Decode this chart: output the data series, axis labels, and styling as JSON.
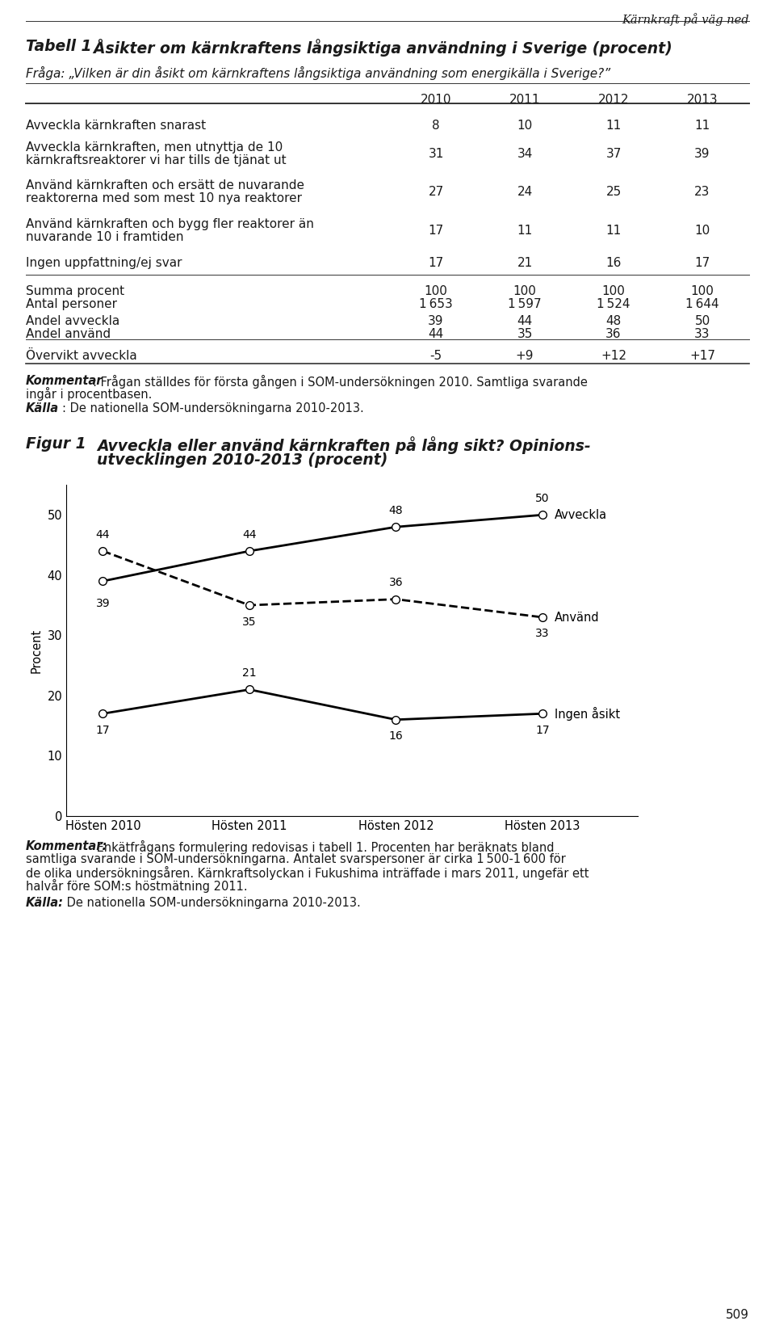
{
  "page_header": "Kärnkraft på väg ned",
  "table_title_bold": "Tabell 1",
  "table_title_rest": "  Åsikter om kärnkraftens långsiktiga användning i Sverige (procent)",
  "table_question": "Fråga: „Vilken är din åsikt om kärnkraftens långsiktiga användning som energikälla i Sverige?”",
  "years": [
    "2010",
    "2011",
    "2012",
    "2013"
  ],
  "row1_label": "Avveckla kärnkraften snarast",
  "row1_vals": [
    "8",
    "10",
    "11",
    "11"
  ],
  "row2_label1": "Avveckla kärnkraften, men utnyttja de 10",
  "row2_label2": "kärnkraftsreaktorer vi har tills de tjänat ut",
  "row2_vals": [
    "31",
    "34",
    "37",
    "39"
  ],
  "row3_label1": "Använd kärnkraften och ersätt de nuvarande",
  "row3_label2": "reaktorerna med som mest 10 nya reaktorer",
  "row3_vals": [
    "27",
    "24",
    "25",
    "23"
  ],
  "row4_label1": "Använd kärnkraften och bygg fler reaktorer än",
  "row4_label2": "nuvarande 10 i framtiden",
  "row4_vals": [
    "17",
    "11",
    "11",
    "10"
  ],
  "row5_label": "Ingen uppfattning/ej svar",
  "row5_vals": [
    "17",
    "21",
    "16",
    "17"
  ],
  "summa_vals": [
    "100",
    "100",
    "100",
    "100"
  ],
  "antal_vals": [
    "1 653",
    "1 597",
    "1 524",
    "1 644"
  ],
  "andel_avv_vals": [
    "39",
    "44",
    "48",
    "50"
  ],
  "andel_anv_vals": [
    "44",
    "35",
    "36",
    "33"
  ],
  "overvikt_vals": [
    "-5",
    "+9",
    "+12",
    "+17"
  ],
  "table_comment1": "Kommentar",
  "table_comment2": ": Frågan ställdes för första gången i SOM-undersökningen 2010. Samtliga svarande",
  "table_comment3": "ingår i procentbasen.",
  "table_source1": "Källa",
  "table_source2": ": De nationella SOM-undersökningarna 2010-2013.",
  "fig_label": "Figur 1",
  "fig_title1": "Avveckla eller använd kärnkraften på lång sikt? Opinions-",
  "fig_title2": "utvecklingen 2010-2013 (procent)",
  "chart_ylabel": "Procent",
  "chart_x_labels": [
    "Hösten 2010",
    "Hösten 2011",
    "Hösten 2012",
    "Hösten 2013"
  ],
  "avveckla_values": [
    39,
    44,
    48,
    50
  ],
  "anvand_values": [
    44,
    35,
    36,
    33
  ],
  "ingen_values": [
    17,
    21,
    16,
    17
  ],
  "avveckla_label": "Avveckla",
  "anvand_label": "Använd",
  "ingen_label": "Ingen åsikt",
  "chart_ylim": [
    0,
    55
  ],
  "chart_yticks": [
    0,
    10,
    20,
    30,
    40,
    50
  ],
  "fig_comment1": "Kommentar:",
  "fig_comment2": " Enkätfrågans formulering redovisas i tabell 1. Procenten har beräknats bland",
  "fig_comment3": "samtliga svarande i SOM-undersökningarna. Antalet svarspersoner är cirka 1 500-1 600 för",
  "fig_comment4": "de olika undersökningsåren. Kärnkraftsolyckan i Fukushima inträffade i mars 2011, ungefär ett",
  "fig_comment5": "halvår före SOM:s höstmätning 2011.",
  "fig_source1": "Källa:",
  "fig_source2": " De nationella SOM-undersökningarna 2010-2013.",
  "page_number": "509",
  "bg_color": "#ffffff"
}
